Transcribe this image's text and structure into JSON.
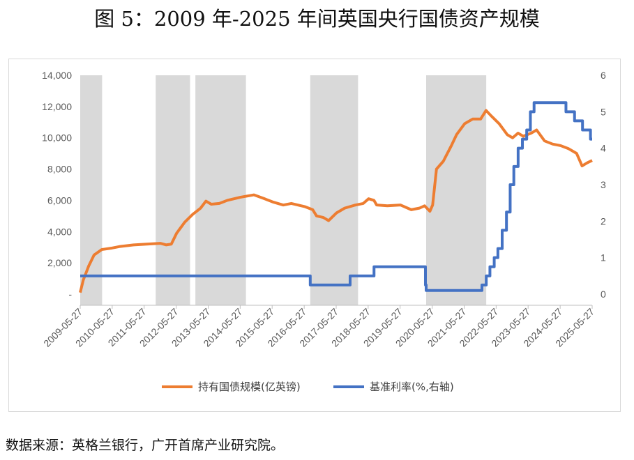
{
  "title": "图 5：2009 年-2025 年间英国央行国债资产规模",
  "source": "数据来源：英格兰银行，广开首席产业研究院。",
  "chart_data": {
    "type": "line",
    "series": [
      {
        "name": "持有国债规模(亿英镑)",
        "axis": "left",
        "color": "#ED7D31",
        "points": [
          [
            "2009-05-27",
            100
          ],
          [
            "2009-07-01",
            900
          ],
          [
            "2009-09-01",
            1800
          ],
          [
            "2009-11-01",
            2500
          ],
          [
            "2010-01-27",
            2850
          ],
          [
            "2010-05-27",
            2950
          ],
          [
            "2010-08-27",
            3050
          ],
          [
            "2011-01-27",
            3150
          ],
          [
            "2011-06-27",
            3200
          ],
          [
            "2011-11-27",
            3250
          ],
          [
            "2012-02-01",
            3150
          ],
          [
            "2012-04-01",
            3200
          ],
          [
            "2012-06-01",
            3900
          ],
          [
            "2012-09-01",
            4600
          ],
          [
            "2012-12-01",
            5100
          ],
          [
            "2013-03-01",
            5500
          ],
          [
            "2013-05-01",
            5950
          ],
          [
            "2013-07-01",
            5750
          ],
          [
            "2013-10-01",
            5800
          ],
          [
            "2014-01-01",
            6000
          ],
          [
            "2014-06-01",
            6200
          ],
          [
            "2014-11-01",
            6350
          ],
          [
            "2015-03-01",
            6100
          ],
          [
            "2015-06-01",
            5900
          ],
          [
            "2015-10-01",
            5700
          ],
          [
            "2016-01-01",
            5800
          ],
          [
            "2016-06-01",
            5600
          ],
          [
            "2016-09-01",
            5400
          ],
          [
            "2016-10-15",
            5000
          ],
          [
            "2017-01-01",
            4900
          ],
          [
            "2017-03-01",
            4700
          ],
          [
            "2017-06-01",
            5200
          ],
          [
            "2017-09-01",
            5500
          ],
          [
            "2018-01-01",
            5700
          ],
          [
            "2018-04-01",
            5800
          ],
          [
            "2018-06-01",
            6100
          ],
          [
            "2018-08-01",
            6000
          ],
          [
            "2018-09-01",
            5700
          ],
          [
            "2019-01-01",
            5650
          ],
          [
            "2019-06-01",
            5700
          ],
          [
            "2019-10-01",
            5400
          ],
          [
            "2020-01-01",
            5500
          ],
          [
            "2020-03-01",
            5650
          ],
          [
            "2020-05-01",
            5300
          ],
          [
            "2020-06-01",
            5700
          ],
          [
            "2020-07-15",
            8000
          ],
          [
            "2020-10-01",
            8500
          ],
          [
            "2021-01-01",
            9500
          ],
          [
            "2021-03-01",
            10200
          ],
          [
            "2021-06-01",
            10900
          ],
          [
            "2021-09-01",
            11200
          ],
          [
            "2021-12-01",
            11200
          ],
          [
            "2022-02-01",
            11750
          ],
          [
            "2022-04-01",
            11400
          ],
          [
            "2022-07-01",
            10900
          ],
          [
            "2022-10-01",
            10200
          ],
          [
            "2022-12-01",
            10000
          ],
          [
            "2023-02-01",
            10300
          ],
          [
            "2023-04-01",
            10100
          ],
          [
            "2023-07-01",
            10300
          ],
          [
            "2023-09-01",
            10500
          ],
          [
            "2023-12-01",
            9800
          ],
          [
            "2024-03-01",
            9600
          ],
          [
            "2024-06-01",
            9500
          ],
          [
            "2024-09-01",
            9300
          ],
          [
            "2024-12-01",
            9000
          ],
          [
            "2025-02-01",
            8200
          ],
          [
            "2025-04-01",
            8400
          ],
          [
            "2025-05-27",
            8550
          ]
        ]
      },
      {
        "name": "基准利率(%,右轴)",
        "axis": "right",
        "color": "#4472C4",
        "step": true,
        "points": [
          [
            "2009-05-27",
            0.5
          ],
          [
            "2016-08-04",
            0.25
          ],
          [
            "2017-11-02",
            0.5
          ],
          [
            "2018-08-02",
            0.75
          ],
          [
            "2020-03-11",
            0.25
          ],
          [
            "2020-03-19",
            0.1
          ],
          [
            "2021-12-16",
            0.25
          ],
          [
            "2022-02-03",
            0.5
          ],
          [
            "2022-03-17",
            0.75
          ],
          [
            "2022-05-05",
            1.0
          ],
          [
            "2022-06-16",
            1.25
          ],
          [
            "2022-08-04",
            1.75
          ],
          [
            "2022-09-22",
            2.25
          ],
          [
            "2022-11-03",
            3.0
          ],
          [
            "2022-12-15",
            3.5
          ],
          [
            "2023-02-02",
            4.0
          ],
          [
            "2023-03-23",
            4.25
          ],
          [
            "2023-05-11",
            4.5
          ],
          [
            "2023-06-22",
            5.0
          ],
          [
            "2023-08-03",
            5.25
          ],
          [
            "2024-08-01",
            5.0
          ],
          [
            "2024-11-07",
            4.75
          ],
          [
            "2025-02-06",
            4.5
          ],
          [
            "2025-05-08",
            4.25
          ],
          [
            "2025-05-27",
            4.25
          ]
        ]
      }
    ],
    "shaded_periods": [
      [
        "2009-05-27",
        "2010-02-01"
      ],
      [
        "2011-10-06",
        "2012-11-01"
      ],
      [
        "2013-01-01",
        "2014-08-01"
      ],
      [
        "2016-08-04",
        "2018-02-01"
      ],
      [
        "2020-03-19",
        "2022-02-03"
      ]
    ],
    "y_left": {
      "min": 0,
      "max": 14000,
      "ticks": [
        {
          "v": 0,
          "label": "-"
        },
        {
          "v": 2000,
          "label": "2,000"
        },
        {
          "v": 4000,
          "label": "4,000"
        },
        {
          "v": 6000,
          "label": "6,000"
        },
        {
          "v": 8000,
          "label": "8,000"
        },
        {
          "v": 10000,
          "label": "10,000"
        },
        {
          "v": 12000,
          "label": "12,000"
        },
        {
          "v": 14000,
          "label": "14,000"
        }
      ]
    },
    "y_right": {
      "min": 0,
      "max": 6,
      "ticks": [
        {
          "v": 0,
          "label": "0"
        },
        {
          "v": 1,
          "label": "1"
        },
        {
          "v": 2,
          "label": "2"
        },
        {
          "v": 3,
          "label": "3"
        },
        {
          "v": 4,
          "label": "4"
        },
        {
          "v": 5,
          "label": "5"
        },
        {
          "v": 6,
          "label": "6"
        }
      ]
    },
    "x_range": [
      "2009-05-27",
      "2025-05-27"
    ],
    "x_ticks": [
      "2009-05-27",
      "2010-05-27",
      "2011-05-27",
      "2012-05-27",
      "2013-05-27",
      "2014-05-27",
      "2015-05-27",
      "2016-05-27",
      "2017-05-27",
      "2018-05-27",
      "2019-05-27",
      "2020-05-27",
      "2021-05-27",
      "2022-05-27",
      "2023-05-27",
      "2024-05-27",
      "2025-05-27"
    ],
    "legend_position": "bottom",
    "shade_color": "#D9D9D9",
    "grid": false
  }
}
